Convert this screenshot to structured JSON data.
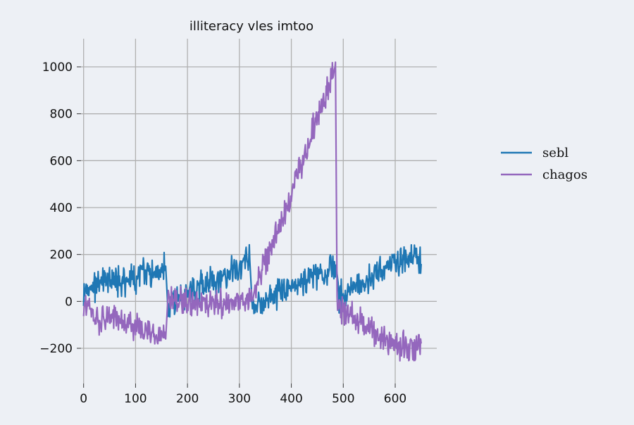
{
  "chart_data": {
    "type": "line",
    "title": "illiteracy vles imtoo",
    "xlabel": "",
    "ylabel": "",
    "xlim": [
      -5,
      680
    ],
    "ylim": [
      -350,
      1120
    ],
    "xticks": [
      0,
      100,
      200,
      300,
      400,
      500,
      600
    ],
    "yticks": [
      -200,
      0,
      200,
      400,
      600,
      800,
      1000
    ],
    "grid": true,
    "legend_position": "right",
    "series": [
      {
        "name": "sebl",
        "color": "#1f77b4",
        "points": [
          [
            0,
            20
          ],
          [
            10,
            40
          ],
          [
            20,
            60
          ],
          [
            30,
            70
          ],
          [
            40,
            75
          ],
          [
            50,
            80
          ],
          [
            60,
            80
          ],
          [
            70,
            85
          ],
          [
            80,
            85
          ],
          [
            90,
            90
          ],
          [
            100,
            100
          ],
          [
            110,
            110
          ],
          [
            120,
            120
          ],
          [
            130,
            125
          ],
          [
            140,
            130
          ],
          [
            150,
            140
          ],
          [
            158,
            150
          ],
          [
            163,
            -20
          ],
          [
            170,
            0
          ],
          [
            180,
            10
          ],
          [
            190,
            20
          ],
          [
            200,
            30
          ],
          [
            210,
            40
          ],
          [
            220,
            55
          ],
          [
            230,
            65
          ],
          [
            240,
            75
          ],
          [
            250,
            90
          ],
          [
            260,
            100
          ],
          [
            270,
            110
          ],
          [
            280,
            125
          ],
          [
            290,
            135
          ],
          [
            300,
            145
          ],
          [
            310,
            160
          ],
          [
            320,
            175
          ],
          [
            325,
            -40
          ],
          [
            330,
            -20
          ],
          [
            340,
            0
          ],
          [
            350,
            10
          ],
          [
            360,
            20
          ],
          [
            370,
            30
          ],
          [
            380,
            40
          ],
          [
            390,
            50
          ],
          [
            400,
            55
          ],
          [
            410,
            65
          ],
          [
            420,
            75
          ],
          [
            430,
            85
          ],
          [
            440,
            95
          ],
          [
            450,
            105
          ],
          [
            460,
            120
          ],
          [
            470,
            130
          ],
          [
            480,
            145
          ],
          [
            486,
            155
          ],
          [
            490,
            20
          ],
          [
            500,
            30
          ],
          [
            510,
            45
          ],
          [
            520,
            55
          ],
          [
            530,
            65
          ],
          [
            540,
            75
          ],
          [
            550,
            95
          ],
          [
            560,
            110
          ],
          [
            570,
            125
          ],
          [
            580,
            140
          ],
          [
            590,
            160
          ],
          [
            600,
            165
          ],
          [
            610,
            175
          ],
          [
            620,
            180
          ],
          [
            630,
            190
          ],
          [
            640,
            200
          ],
          [
            650,
            160
          ]
        ]
      },
      {
        "name": "chagos",
        "color": "#9467bd",
        "points": [
          [
            0,
            -20
          ],
          [
            10,
            -40
          ],
          [
            20,
            -60
          ],
          [
            30,
            -70
          ],
          [
            40,
            -80
          ],
          [
            50,
            -80
          ],
          [
            60,
            -85
          ],
          [
            70,
            -90
          ],
          [
            80,
            -95
          ],
          [
            90,
            -100
          ],
          [
            100,
            -105
          ],
          [
            110,
            -115
          ],
          [
            120,
            -120
          ],
          [
            130,
            -130
          ],
          [
            140,
            -140
          ],
          [
            150,
            -150
          ],
          [
            158,
            -160
          ],
          [
            163,
            20
          ],
          [
            170,
            10
          ],
          [
            180,
            5
          ],
          [
            190,
            0
          ],
          [
            200,
            -5
          ],
          [
            210,
            -10
          ],
          [
            220,
            -5
          ],
          [
            230,
            -10
          ],
          [
            240,
            -15
          ],
          [
            250,
            -10
          ],
          [
            260,
            0
          ],
          [
            270,
            -15
          ],
          [
            280,
            -20
          ],
          [
            290,
            -15
          ],
          [
            300,
            -25
          ],
          [
            310,
            -10
          ],
          [
            320,
            10
          ],
          [
            325,
            40
          ],
          [
            330,
            60
          ],
          [
            340,
            110
          ],
          [
            350,
            170
          ],
          [
            360,
            220
          ],
          [
            370,
            280
          ],
          [
            380,
            340
          ],
          [
            390,
            400
          ],
          [
            400,
            460
          ],
          [
            410,
            530
          ],
          [
            420,
            590
          ],
          [
            430,
            650
          ],
          [
            440,
            720
          ],
          [
            450,
            780
          ],
          [
            460,
            840
          ],
          [
            470,
            900
          ],
          [
            480,
            970
          ],
          [
            485,
            1020
          ],
          [
            488,
            0
          ],
          [
            490,
            -20
          ],
          [
            500,
            -40
          ],
          [
            510,
            -60
          ],
          [
            520,
            -70
          ],
          [
            530,
            -80
          ],
          [
            540,
            -100
          ],
          [
            550,
            -110
          ],
          [
            560,
            -130
          ],
          [
            570,
            -150
          ],
          [
            580,
            -160
          ],
          [
            590,
            -170
          ],
          [
            600,
            -180
          ],
          [
            610,
            -190
          ],
          [
            620,
            -200
          ],
          [
            630,
            -205
          ],
          [
            640,
            -210
          ],
          [
            650,
            -180
          ]
        ]
      }
    ]
  }
}
